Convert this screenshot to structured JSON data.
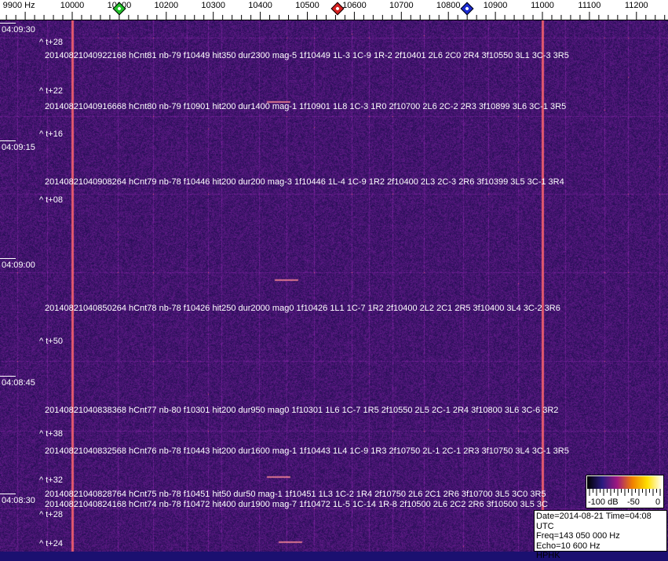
{
  "chart_data": {
    "type": "heatmap",
    "x_axis": {
      "unit": "Hz",
      "range": [
        9800,
        11300
      ],
      "tick_labels": [
        "9900 Hz",
        "10000",
        "10100",
        "10200",
        "10300",
        "10400",
        "10500",
        "10600",
        "10700",
        "10800",
        "10900",
        "11000",
        "11100",
        "11200"
      ],
      "tick_values": [
        9900,
        10000,
        10100,
        10200,
        10300,
        10400,
        10500,
        10600,
        10700,
        10800,
        10900,
        11000,
        11100,
        11200
      ]
    },
    "markers": [
      {
        "freq_hz": 10100,
        "color": "#22c02a"
      },
      {
        "freq_hz": 10565,
        "color": "#d42020"
      },
      {
        "freq_hz": 10840,
        "color": "#1a2ad0"
      }
    ],
    "time_labels": [
      {
        "label": "04:09:30",
        "seconds_before_top": 0
      },
      {
        "label": "04:09:15",
        "seconds_before_top": 15
      },
      {
        "label": "04:09:00",
        "seconds_before_top": 30
      },
      {
        "label": "04:08:45",
        "seconds_before_top": 45
      },
      {
        "label": "04:08:30",
        "seconds_before_top": 60
      }
    ],
    "offset_labels": [
      {
        "label": "^ t+28",
        "sec": 1.6
      },
      {
        "label": "^ t+22",
        "sec": 7.8
      },
      {
        "label": "^ t+16",
        "sec": 13.3
      },
      {
        "label": "^ t+08",
        "sec": 21.7
      },
      {
        "label": "^ t+50",
        "sec": 39.7
      },
      {
        "label": "^ t+38",
        "sec": 51.5
      },
      {
        "label": "^ t+32",
        "sec": 57.4
      },
      {
        "label": "^ t+28",
        "sec": 61.2
      },
      {
        "label": "^ t+24",
        "sec": 65.5
      }
    ],
    "detections": [
      {
        "text": "20140821040922168 hCnt81 nb-79 f10449 hit350 dur2300 mag-5 1f10449 1L-3 1C-9 1R-2 2f10401 2L6 2C0 2R4 3f10550 3L1 3C-3 3R5",
        "sec": 3.3
      },
      {
        "text": "20140821040916668 hCnt80 nb-79 f10901 hit200 dur1400 mag-1 1f10901 1L8 1C-3 1R0 2f10700 2L6 2C-2 2R3 3f10899 3L6 3C-1 3R5",
        "sec": 9.8
      },
      {
        "text": "20140821040908264 hCnt79 nb-78 f10446 hit200 dur200 mag-3 1f10446 1L-4 1C-9 1R2 2f10400 2L3 2C-3 2R6 3f10399 3L5 3C-1 3R4",
        "sec": 19.4
      },
      {
        "text": "20140821040850264 hCnt78 nb-78 f10426 hit250 dur2000 mag0 1f10426 1L1 1C-7 1R2 2f10400 2L2 2C1 2R5 3f10400 3L4 3C-2 3R6",
        "sec": 35.5
      },
      {
        "text": "20140821040838368 hCnt77 nb-80 f10301 hit200 dur950 mag0 1f10301 1L6 1C-7 1R5 2f10550 2L5 2C-1 2R4 3f10800 3L6 3C-6 3R2",
        "sec": 48.5
      },
      {
        "text": "20140821040832568 hCnt76 nb-78 f10443 hit200 dur1600 mag-1 1f10443 1L4 1C-9 1R3 2f10750 2L-1 2C-1 2R3 3f10750 3L4 3C-1 3R5",
        "sec": 53.7
      },
      {
        "text": "20140821040828764 hCnt75 nb-78 f10451 hit50 dur50 mag-1 1f10451 1L3 1C-2 1R4 2f10750 2L6 2C1 2R6 3f10700 3L5 3C0 3R5",
        "sec": 59.2
      },
      {
        "text": "20140821040824168 hCnt74 nb-78 f10472 hit400 dur1900 mag-7 1f10472 1L-5 1C-14 1R-8 2f10500 2L6 2C2 2R6 3f10500 3L5 3C",
        "sec": 59.8
      }
    ],
    "strong_carriers_hz": [
      10000,
      11000
    ],
    "colorbar": {
      "tick_labels": [
        "-100 dB",
        "-50",
        "0"
      ],
      "range_db": [
        -100,
        0
      ],
      "colors": [
        "#000000",
        "#2a1a80",
        "#a01880",
        "#f08000",
        "#ffe000",
        "#ffffff"
      ]
    }
  },
  "info": {
    "date_time": "Date=2014-08-21 Time=04:08 UTC",
    "freq": "Freq=143 050 000 Hz",
    "echo": "Echo=10 600 Hz",
    "station": "HPHK"
  }
}
